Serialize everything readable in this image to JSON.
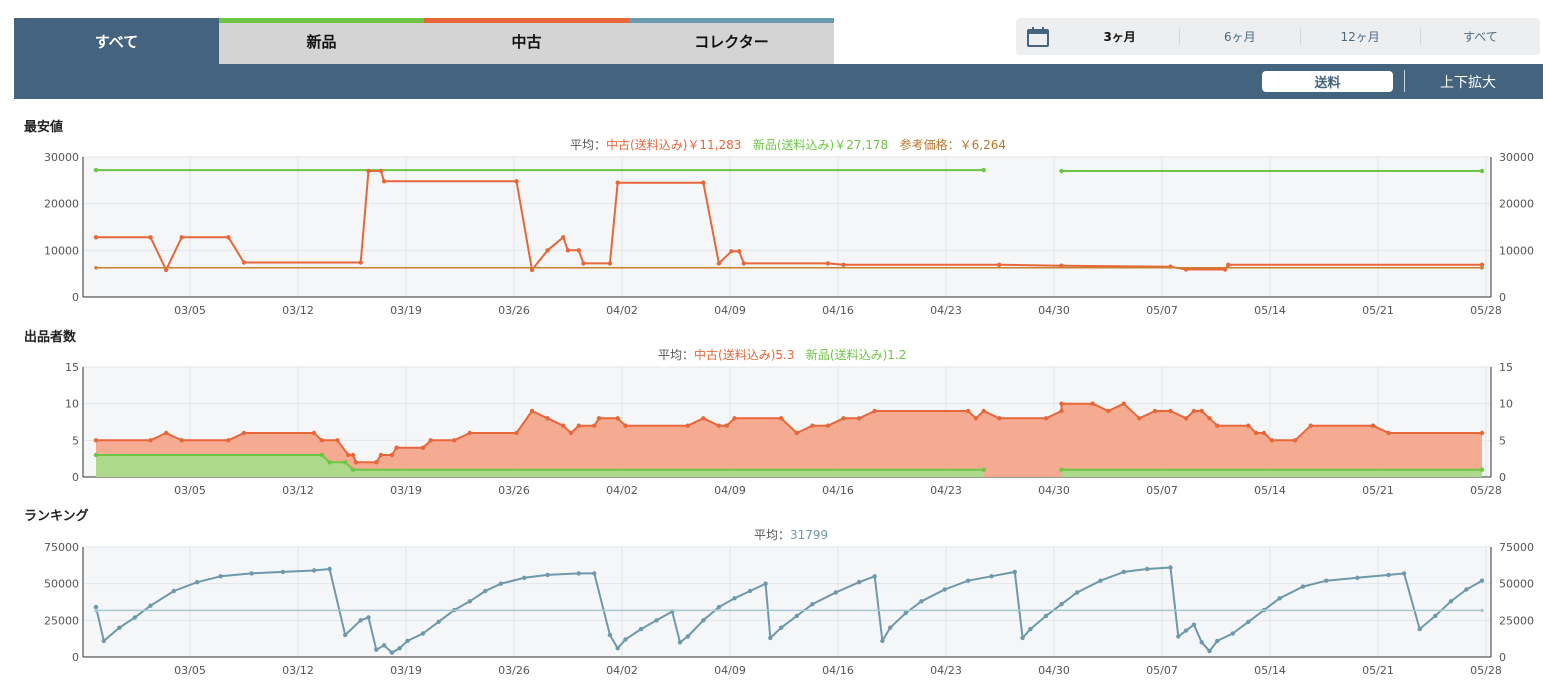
{
  "tabs": {
    "all": "すべて",
    "new": "新品",
    "used": "中古",
    "collector": "コレクター",
    "colors": {
      "new": "#6cc644",
      "used": "#e8673a",
      "collector": "#6a9cae"
    }
  },
  "ranges": [
    "3ヶ月",
    "6ヶ月",
    "12ヶ月",
    "すべて"
  ],
  "controls": {
    "shipping": "送料",
    "zoom": "上下拡大"
  },
  "sections": {
    "price": {
      "title": "最安値",
      "avg_prefix": "平均：",
      "avg_used": "中古(送料込み)￥11,283",
      "avg_new": "新品(送料込み)￥27,178",
      "avg_ref": "参考価格：￥6,264"
    },
    "sellers": {
      "title": "出品者数",
      "avg_prefix": "平均：",
      "avg_used": "中古(送料込み)5.3",
      "avg_new": "新品(送料込み)1.2"
    },
    "ranking": {
      "title": "ランキング",
      "avg_prefix": "平均：",
      "avg_value": "31799"
    }
  },
  "chart_data": [
    {
      "type": "line",
      "title": "最安値",
      "x_ticks": [
        "03/05",
        "03/12",
        "03/19",
        "03/26",
        "04/02",
        "04/09",
        "04/16",
        "04/23",
        "04/30",
        "05/07",
        "05/14",
        "05/21",
        "05/28"
      ],
      "ylim": [
        0,
        30000
      ],
      "y_ticks": [
        "0",
        "10000",
        "20000",
        "30000"
      ],
      "grid": true,
      "colors": {
        "used": "#e8673a",
        "new": "#6cc644",
        "ref": "#c9802f"
      },
      "series": [
        {
          "name": "新品(送料込み)",
          "key": "new",
          "points": [
            [
              0,
              27200
            ],
            [
              57,
              27200
            ],
            [
              57.2,
              null
            ],
            [
              62,
              27000
            ],
            [
              89,
              27000
            ]
          ]
        },
        {
          "name": "中古(送料込み)",
          "key": "used",
          "points": [
            [
              0,
              12800
            ],
            [
              3.5,
              12800
            ],
            [
              4.5,
              5800
            ],
            [
              5.5,
              12800
            ],
            [
              8.5,
              12800
            ],
            [
              9.5,
              7400
            ],
            [
              17,
              7400
            ],
            [
              17.5,
              27000
            ],
            [
              18.3,
              27000
            ],
            [
              18.5,
              24800
            ],
            [
              27,
              24800
            ],
            [
              28,
              5800
            ],
            [
              29,
              10000
            ],
            [
              30,
              12800
            ],
            [
              30.3,
              10000
            ],
            [
              31,
              10000
            ],
            [
              31.3,
              7200
            ],
            [
              33,
              7200
            ],
            [
              33.5,
              24500
            ],
            [
              39,
              24500
            ],
            [
              40,
              7200
            ],
            [
              40.8,
              9800
            ],
            [
              41.3,
              9800
            ],
            [
              41.6,
              7200
            ],
            [
              47,
              7200
            ],
            [
              48,
              6900
            ],
            [
              58,
              6900
            ],
            [
              62,
              6700
            ],
            [
              69,
              6500
            ],
            [
              70,
              5900
            ],
            [
              72.5,
              5900
            ],
            [
              72.7,
              6900
            ],
            [
              89,
              6900
            ]
          ]
        },
        {
          "name": "参考価格",
          "key": "ref",
          "points": [
            [
              0,
              6264
            ],
            [
              89,
              6264
            ]
          ]
        }
      ]
    },
    {
      "type": "area",
      "title": "出品者数",
      "x_ticks": [
        "03/05",
        "03/12",
        "03/19",
        "03/26",
        "04/02",
        "04/09",
        "04/16",
        "04/23",
        "04/30",
        "05/07",
        "05/14",
        "05/21",
        "05/28"
      ],
      "ylim": [
        0,
        15
      ],
      "y_ticks": [
        "0",
        "5",
        "10",
        "15"
      ],
      "grid": true,
      "colors": {
        "used": "#e8673a",
        "used_fill": "#f4a68b",
        "new": "#6cc644",
        "new_fill": "#a9dc8a"
      },
      "series": [
        {
          "name": "中古(送料込み)",
          "key": "used",
          "points": [
            [
              0,
              5
            ],
            [
              3.5,
              5
            ],
            [
              4.5,
              6
            ],
            [
              5.5,
              5
            ],
            [
              8.5,
              5
            ],
            [
              9.5,
              6
            ],
            [
              14,
              6
            ],
            [
              14.5,
              5
            ],
            [
              15.5,
              5
            ],
            [
              16.2,
              3
            ],
            [
              16.5,
              3
            ],
            [
              16.7,
              2
            ],
            [
              18,
              2
            ],
            [
              18.3,
              3
            ],
            [
              19,
              3
            ],
            [
              19.3,
              4
            ],
            [
              21,
              4
            ],
            [
              21.5,
              5
            ],
            [
              23,
              5
            ],
            [
              24,
              6
            ],
            [
              27,
              6
            ],
            [
              28,
              9
            ],
            [
              29,
              8
            ],
            [
              30,
              7
            ],
            [
              30.5,
              6
            ],
            [
              31,
              7
            ],
            [
              32,
              7
            ],
            [
              32.3,
              8
            ],
            [
              33.5,
              8
            ],
            [
              34,
              7
            ],
            [
              38,
              7
            ],
            [
              39,
              8
            ],
            [
              40,
              7
            ],
            [
              40.5,
              7
            ],
            [
              41,
              8
            ],
            [
              44,
              8
            ],
            [
              45,
              6
            ],
            [
              46,
              7
            ],
            [
              47,
              7
            ],
            [
              48,
              8
            ],
            [
              49,
              8
            ],
            [
              50,
              9
            ],
            [
              56,
              9
            ],
            [
              56.5,
              8
            ],
            [
              57,
              9
            ],
            [
              58,
              8
            ],
            [
              61,
              8
            ],
            [
              62,
              9
            ],
            [
              62,
              10
            ],
            [
              64,
              10
            ],
            [
              65,
              9
            ],
            [
              66,
              10
            ],
            [
              67,
              8
            ],
            [
              68,
              9
            ],
            [
              69,
              9
            ],
            [
              70,
              8
            ],
            [
              70.5,
              9
            ],
            [
              71,
              9
            ],
            [
              71.5,
              8
            ],
            [
              72,
              7
            ],
            [
              74,
              7
            ],
            [
              74.5,
              6
            ],
            [
              75,
              6
            ],
            [
              75.5,
              5
            ],
            [
              77,
              5
            ],
            [
              78,
              7
            ],
            [
              82,
              7
            ],
            [
              83,
              6
            ],
            [
              89,
              6
            ]
          ]
        },
        {
          "name": "新品(送料込み)",
          "key": "new",
          "points": [
            [
              0,
              3
            ],
            [
              14.5,
              3
            ],
            [
              15,
              2
            ],
            [
              16,
              2
            ],
            [
              16.5,
              1
            ],
            [
              57,
              1
            ],
            [
              57.2,
              null
            ],
            [
              62,
              1
            ],
            [
              89,
              1
            ]
          ]
        }
      ]
    },
    {
      "type": "line",
      "title": "ランキング",
      "x_ticks": [
        "03/05",
        "03/12",
        "03/19",
        "03/26",
        "04/02",
        "04/09",
        "04/16",
        "04/23",
        "04/30",
        "05/07",
        "05/14",
        "05/21",
        "05/28"
      ],
      "ylim": [
        0,
        75000
      ],
      "y_ticks": [
        "0",
        "25000",
        "50000",
        "75000"
      ],
      "grid": true,
      "colors": {
        "rank": "#6e98ab",
        "avg": "#a8c6d3"
      },
      "series": [
        {
          "name": "ランキング",
          "key": "rank",
          "points": [
            [
              0,
              34000
            ],
            [
              0.5,
              11000
            ],
            [
              1.5,
              20000
            ],
            [
              2.5,
              27000
            ],
            [
              3.5,
              35000
            ],
            [
              5,
              45000
            ],
            [
              6.5,
              51000
            ],
            [
              8,
              55000
            ],
            [
              10,
              57000
            ],
            [
              12,
              58000
            ],
            [
              14,
              59000
            ],
            [
              15,
              60000
            ],
            [
              16,
              15000
            ],
            [
              17,
              25000
            ],
            [
              17.5,
              27000
            ],
            [
              18,
              5000
            ],
            [
              18.5,
              8000
            ],
            [
              19,
              3000
            ],
            [
              19.5,
              6000
            ],
            [
              20,
              11000
            ],
            [
              21,
              16000
            ],
            [
              22,
              24000
            ],
            [
              23,
              32000
            ],
            [
              24,
              38000
            ],
            [
              25,
              45000
            ],
            [
              26,
              50000
            ],
            [
              27.5,
              54000
            ],
            [
              29,
              56000
            ],
            [
              31,
              57000
            ],
            [
              32,
              57000
            ],
            [
              33,
              15000
            ],
            [
              33.5,
              6000
            ],
            [
              34,
              12000
            ],
            [
              35,
              19000
            ],
            [
              36,
              25000
            ],
            [
              37,
              31000
            ],
            [
              37.5,
              10000
            ],
            [
              38,
              14000
            ],
            [
              39,
              25000
            ],
            [
              40,
              34000
            ],
            [
              41,
              40000
            ],
            [
              42,
              45000
            ],
            [
              43,
              50000
            ],
            [
              43.3,
              13000
            ],
            [
              44,
              20000
            ],
            [
              45,
              28000
            ],
            [
              46,
              36000
            ],
            [
              47.5,
              44000
            ],
            [
              49,
              51000
            ],
            [
              50,
              55000
            ],
            [
              50.5,
              11000
            ],
            [
              51,
              20000
            ],
            [
              52,
              30000
            ],
            [
              53,
              38000
            ],
            [
              54.5,
              46000
            ],
            [
              56,
              52000
            ],
            [
              57.5,
              55000
            ],
            [
              59,
              58000
            ],
            [
              59.5,
              13000
            ],
            [
              60,
              19000
            ],
            [
              61,
              28000
            ],
            [
              62,
              36000
            ],
            [
              63,
              44000
            ],
            [
              64.5,
              52000
            ],
            [
              66,
              58000
            ],
            [
              67.5,
              60000
            ],
            [
              69,
              61000
            ],
            [
              69.5,
              14000
            ],
            [
              70,
              18000
            ],
            [
              70.5,
              22000
            ],
            [
              71,
              10000
            ],
            [
              71.5,
              4000
            ],
            [
              72,
              11000
            ],
            [
              73,
              16000
            ],
            [
              74,
              24000
            ],
            [
              75,
              32000
            ],
            [
              76,
              40000
            ],
            [
              77.5,
              48000
            ],
            [
              79,
              52000
            ],
            [
              81,
              54000
            ],
            [
              83,
              56000
            ],
            [
              84,
              57000
            ],
            [
              85,
              19000
            ],
            [
              86,
              28000
            ],
            [
              87,
              38000
            ],
            [
              88,
              46000
            ],
            [
              89,
              52000
            ]
          ]
        },
        {
          "name": "平均",
          "key": "avg",
          "points": [
            [
              0,
              31799
            ],
            [
              89,
              31799
            ]
          ]
        }
      ]
    }
  ]
}
